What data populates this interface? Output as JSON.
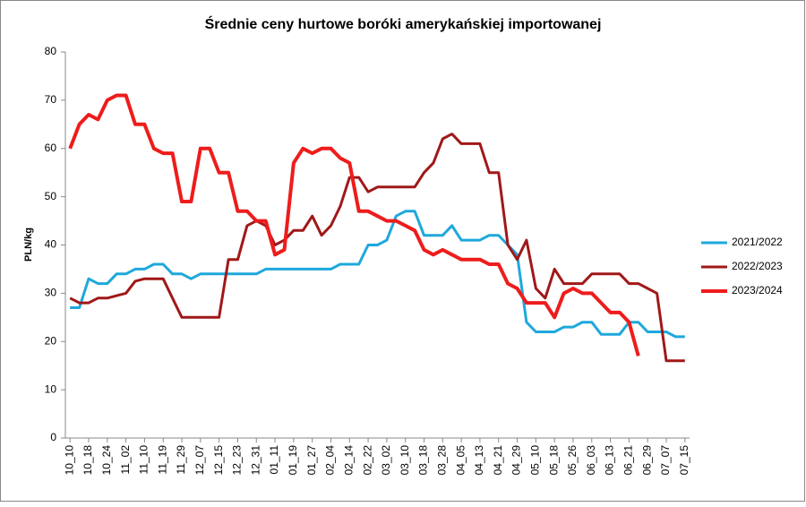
{
  "chart_data": {
    "type": "line",
    "title": "Średnie ceny hurtowe boróki amerykańskiej importowanej",
    "y_label": "PLN/kg",
    "categories": [
      "10_10",
      null,
      "10_18",
      null,
      "10_24",
      null,
      "11_02",
      null,
      "11_10",
      null,
      "11_19",
      null,
      "11_29",
      null,
      "12_07",
      null,
      "12_15",
      null,
      "12_23",
      null,
      "12_31",
      null,
      "01_11",
      null,
      "01_19",
      null,
      "01_27",
      null,
      "02_04",
      null,
      "02_14",
      null,
      "02_22",
      null,
      "03_02",
      null,
      "03_10",
      null,
      "03_18",
      null,
      "03_28",
      null,
      "04_05",
      null,
      "04_13",
      null,
      "04_21",
      null,
      "04_29",
      null,
      "05_10",
      null,
      "05_18",
      null,
      "05_26",
      null,
      "06_03",
      null,
      "06_13",
      null,
      "06_21",
      null,
      "06_29",
      null,
      "07_07",
      null,
      "07_15"
    ],
    "series": [
      {
        "name": "2021/2022",
        "color": "#1ea8dc",
        "width": 3,
        "values": [
          27,
          27,
          33,
          32,
          32,
          34,
          34,
          35,
          35,
          36,
          36,
          34,
          34,
          33,
          34,
          34,
          34,
          34,
          34,
          34,
          34,
          35,
          35,
          35,
          35,
          35,
          35,
          35,
          35,
          36,
          36,
          36,
          40,
          40,
          41,
          46,
          47,
          47,
          42,
          42,
          42,
          44,
          41,
          41,
          41,
          42,
          42,
          40,
          38,
          24,
          22,
          22,
          22,
          23,
          23,
          24,
          24,
          21.5,
          21.5,
          21.5,
          24,
          24,
          22,
          22,
          22,
          21,
          21
        ]
      },
      {
        "name": "2022/2023",
        "color": "#a01818",
        "width": 3,
        "values": [
          29,
          28,
          28,
          29,
          29,
          29.5,
          30,
          32.5,
          33,
          33,
          33,
          29,
          25,
          25,
          25,
          25,
          25,
          37,
          37,
          44,
          45,
          44,
          40,
          41,
          43,
          43,
          46,
          42,
          44,
          48,
          54,
          54,
          51,
          52,
          52,
          52,
          52,
          52,
          55,
          57,
          62,
          63,
          61,
          61,
          61,
          55,
          55,
          40,
          37,
          41,
          31,
          29,
          35,
          32,
          32,
          32,
          34,
          34,
          34,
          34,
          32,
          32,
          31,
          30,
          16,
          16,
          16
        ]
      },
      {
        "name": "2023/2024",
        "color": "#ee1c1c",
        "width": 4,
        "values": [
          60,
          65,
          67,
          66,
          70,
          71,
          71,
          65,
          65,
          60,
          59,
          59,
          49,
          49,
          60,
          60,
          55,
          55,
          47,
          47,
          45,
          45,
          38,
          39,
          57,
          60,
          59,
          60,
          60,
          58,
          57,
          47,
          47,
          46,
          45,
          45,
          44,
          43,
          39,
          38,
          39,
          38,
          37,
          37,
          37,
          36,
          36,
          32,
          31,
          28,
          28,
          28,
          25,
          30,
          31,
          30,
          30,
          28,
          26,
          26,
          24,
          17,
          null,
          null,
          null,
          null,
          null
        ]
      }
    ],
    "ylim": [
      0,
      80
    ],
    "yticks": [
      0,
      10,
      20,
      30,
      40,
      50,
      60,
      70,
      80
    ],
    "grid": false,
    "legend": "right"
  }
}
